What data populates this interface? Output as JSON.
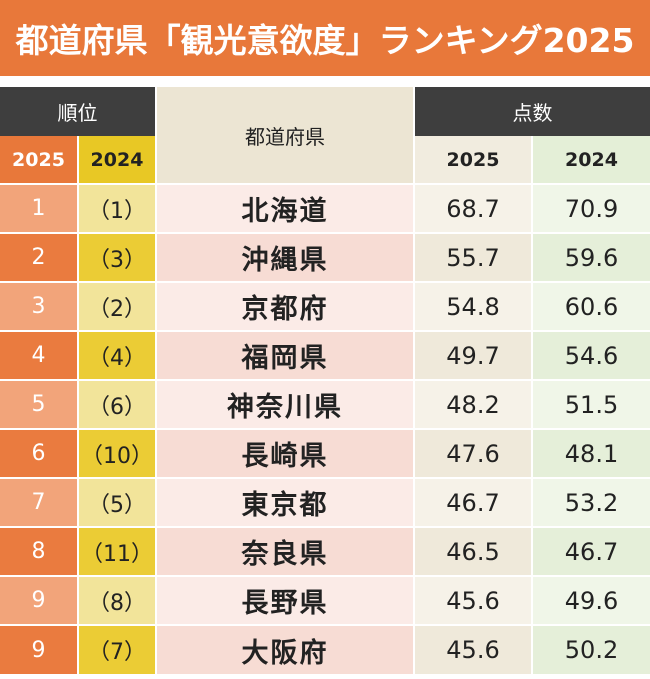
{
  "title": "都道府県「観光意欲度」ランキング2025",
  "headers": {
    "rank_group": "順位",
    "prefecture": "都道府県",
    "score_group": "点数",
    "rank_2025": "2025",
    "rank_2024": "2024",
    "score_2025": "2025",
    "score_2024": "2024"
  },
  "colors": {
    "title_bg": "#e8783a",
    "header_dark": "#3e3e3e",
    "rank2025_accent": "#e8783a",
    "rank2024_accent": "#e8c825"
  },
  "rows": [
    {
      "rank_2025": "1",
      "rank_2024": "（1）",
      "prefecture": "北海道",
      "score_2025": "68.7",
      "score_2024": "70.9"
    },
    {
      "rank_2025": "2",
      "rank_2024": "（3）",
      "prefecture": "沖縄県",
      "score_2025": "55.7",
      "score_2024": "59.6"
    },
    {
      "rank_2025": "3",
      "rank_2024": "（2）",
      "prefecture": "京都府",
      "score_2025": "54.8",
      "score_2024": "60.6"
    },
    {
      "rank_2025": "4",
      "rank_2024": "（4）",
      "prefecture": "福岡県",
      "score_2025": "49.7",
      "score_2024": "54.6"
    },
    {
      "rank_2025": "5",
      "rank_2024": "（6）",
      "prefecture": "神奈川県",
      "score_2025": "48.2",
      "score_2024": "51.5"
    },
    {
      "rank_2025": "6",
      "rank_2024": "（10）",
      "prefecture": "長崎県",
      "score_2025": "47.6",
      "score_2024": "48.1"
    },
    {
      "rank_2025": "7",
      "rank_2024": "（5）",
      "prefecture": "東京都",
      "score_2025": "46.7",
      "score_2024": "53.2"
    },
    {
      "rank_2025": "8",
      "rank_2024": "（11）",
      "prefecture": "奈良県",
      "score_2025": "46.5",
      "score_2024": "46.7"
    },
    {
      "rank_2025": "9",
      "rank_2024": "（8）",
      "prefecture": "長野県",
      "score_2025": "45.6",
      "score_2024": "49.6"
    },
    {
      "rank_2025": "9",
      "rank_2024": "（7）",
      "prefecture": "大阪府",
      "score_2025": "45.6",
      "score_2024": "50.2"
    }
  ]
}
